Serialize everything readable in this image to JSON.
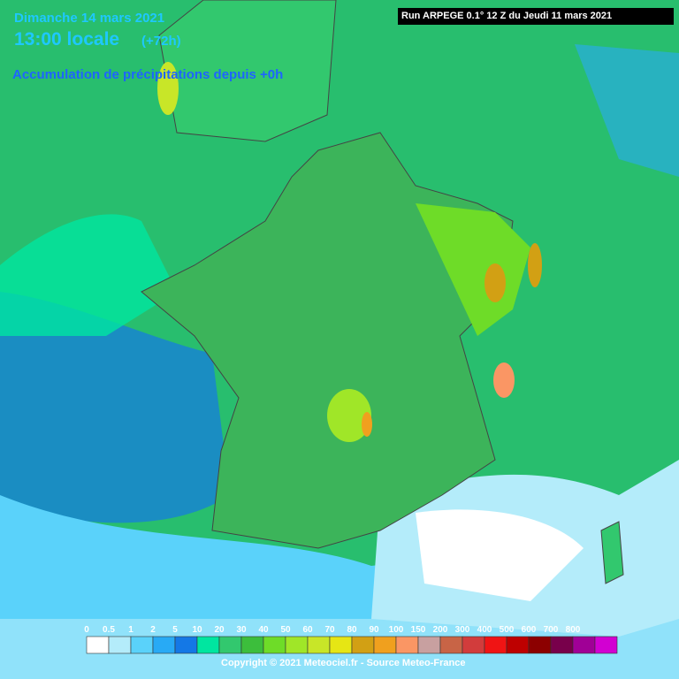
{
  "header": {
    "date": "Dimanche 14 mars 2021",
    "time": "13:00 locale",
    "lead": "(+72h)",
    "product": "Accumulation de précipitations depuis +0h"
  },
  "run": "Run ARPEGE 0.1° 12 Z du Jeudi 11 mars 2021",
  "legend": {
    "items": [
      {
        "label": "0",
        "color": "#ffffff"
      },
      {
        "label": "0.5",
        "color": "#b4ecfa"
      },
      {
        "label": "1",
        "color": "#5ad2fa"
      },
      {
        "label": "2",
        "color": "#28aaf5"
      },
      {
        "label": "5",
        "color": "#1478e6"
      },
      {
        "label": "10",
        "color": "#00e6a0"
      },
      {
        "label": "20",
        "color": "#32c86e"
      },
      {
        "label": "30",
        "color": "#3cbe3c"
      },
      {
        "label": "40",
        "color": "#6edc28"
      },
      {
        "label": "50",
        "color": "#a0e628"
      },
      {
        "label": "60",
        "color": "#c8e628"
      },
      {
        "label": "70",
        "color": "#e6e614"
      },
      {
        "label": "80",
        "color": "#d2a014"
      },
      {
        "label": "90",
        "color": "#f0a01e"
      },
      {
        "label": "100",
        "color": "#fa9664"
      },
      {
        "label": "150",
        "color": "#c8a0a0"
      },
      {
        "label": "200",
        "color": "#c86446"
      },
      {
        "label": "300",
        "color": "#d23c3c"
      },
      {
        "label": "400",
        "color": "#f01414"
      },
      {
        "label": "500",
        "color": "#be0000"
      },
      {
        "label": "600",
        "color": "#8c0000"
      },
      {
        "label": "700",
        "color": "#78004b"
      },
      {
        "label": "800",
        "color": "#a00096"
      },
      {
        "label": null,
        "color": "#d200d2"
      }
    ]
  },
  "copyright": "Copyright © 2021 Meteociel.fr - Source Meteo-France"
}
